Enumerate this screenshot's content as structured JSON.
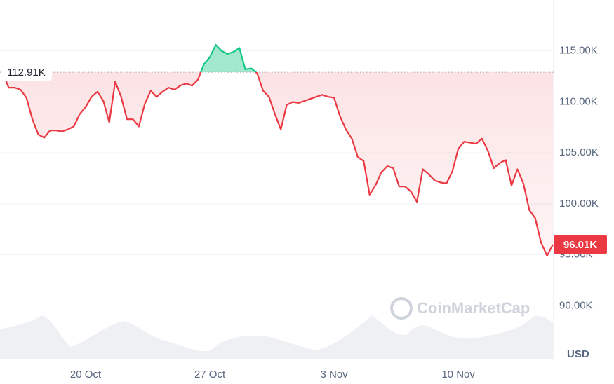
{
  "chart_data": {
    "type": "line",
    "categories": [
      null,
      null,
      null,
      null,
      null,
      null,
      null,
      null,
      null,
      null,
      null,
      null,
      null,
      null,
      "20 Oct",
      null,
      null,
      null,
      null,
      null,
      null,
      null,
      null,
      null,
      null,
      null,
      null,
      null,
      null,
      null,
      null,
      null,
      null,
      null,
      null,
      "27 Oct",
      null,
      null,
      null,
      null,
      null,
      null,
      null,
      null,
      null,
      null,
      null,
      null,
      null,
      null,
      null,
      null,
      null,
      null,
      null,
      null,
      "3 Nov",
      null,
      null,
      null,
      null,
      null,
      null,
      null,
      null,
      null,
      null,
      null,
      null,
      null,
      null,
      null,
      null,
      null,
      null,
      null,
      null,
      "10 Nov",
      null,
      null,
      null,
      null,
      null,
      null,
      null,
      null,
      null,
      null,
      null,
      null,
      null,
      null,
      null,
      null
    ],
    "values": [
      112800,
      111400,
      111400,
      111200,
      110400,
      108300,
      106800,
      106500,
      107200,
      107200,
      107100,
      107300,
      107600,
      108800,
      109500,
      110500,
      111000,
      110100,
      108000,
      112000,
      110500,
      108300,
      108300,
      107600,
      109800,
      111100,
      110500,
      111000,
      111400,
      111200,
      111600,
      111800,
      111600,
      112200,
      113700,
      114400,
      115600,
      115000,
      114700,
      114900,
      115300,
      113200,
      113300,
      112800,
      111100,
      110500,
      108800,
      107300,
      109700,
      110000,
      109900,
      110100,
      110300,
      110500,
      110700,
      110500,
      110400,
      108600,
      107300,
      106400,
      104600,
      104200,
      100900,
      101800,
      103100,
      103700,
      103500,
      101700,
      101700,
      101200,
      100200,
      103400,
      102900,
      102300,
      102100,
      102000,
      103200,
      105400,
      106100,
      106000,
      105900,
      106400,
      105200,
      103500,
      104000,
      104300,
      101800,
      103400,
      102000,
      99400,
      98600,
      96200,
      94900,
      96010
    ],
    "value_labels": [
      null,
      null,
      null,
      null,
      null,
      null,
      null,
      null,
      null,
      null,
      null,
      null,
      null,
      null,
      null,
      null,
      null,
      null,
      null,
      null,
      null,
      null,
      null,
      null,
      null,
      null,
      null,
      null,
      null,
      null,
      null,
      null,
      null,
      null,
      null,
      null,
      null,
      null,
      null,
      null,
      null,
      null,
      null,
      null,
      null,
      null,
      null,
      null,
      null,
      null,
      null,
      null,
      null,
      null,
      null,
      null,
      null,
      null,
      null,
      null,
      null,
      null,
      null,
      null,
      null,
      null,
      null,
      null,
      null,
      null,
      null,
      null,
      null,
      null,
      null,
      null,
      null,
      null,
      null,
      null,
      null,
      null,
      null,
      null,
      null,
      null,
      null,
      null,
      null,
      null,
      null,
      null,
      null,
      "96.01K"
    ],
    "baseline": {
      "value": 112910,
      "label": "112.91K"
    },
    "up_color": "#16c784",
    "down_color": "#ea3943",
    "ylim": [
      84800,
      120000
    ],
    "yticks": [
      {
        "value": 90000,
        "label": "90.00K"
      },
      {
        "value": 95000,
        "label": "95.00K"
      },
      {
        "value": 100000,
        "label": "100.00K"
      },
      {
        "value": 105000,
        "label": "105.00K"
      },
      {
        "value": 110000,
        "label": "110.00K"
      },
      {
        "value": 115000,
        "label": "115.00K"
      }
    ],
    "grid": true,
    "unit_label": "USD",
    "watermark": "CoinMarketCap"
  }
}
